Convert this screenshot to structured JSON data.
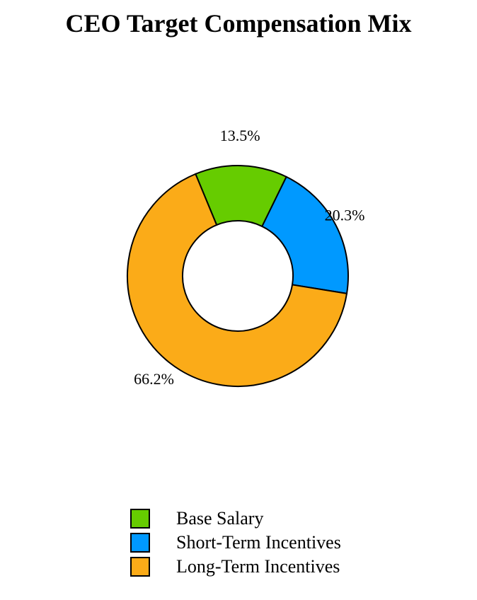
{
  "chart_data": {
    "type": "pie",
    "title": "CEO Target Compensation Mix",
    "categories": [
      "Base Salary",
      "Short-Term Incentives",
      "Long-Term Incentives"
    ],
    "values": [
      13.5,
      20.3,
      66.2
    ],
    "value_labels": [
      "13.5%",
      "20.3%",
      "66.2%"
    ],
    "colors": [
      "#66cc00",
      "#0099ff",
      "#fbab18"
    ],
    "donut": true,
    "legend_position": "bottom"
  }
}
